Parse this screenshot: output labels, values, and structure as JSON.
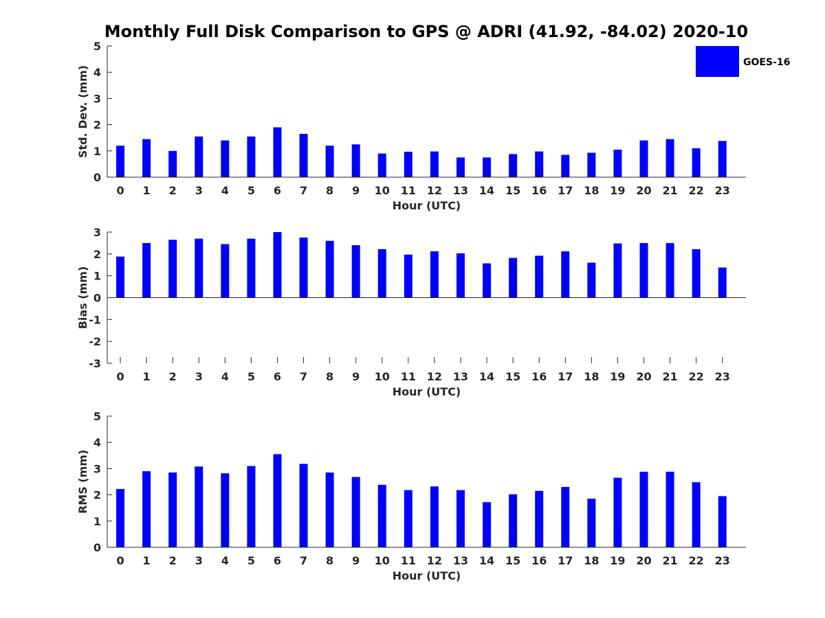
{
  "title": "Monthly Full Disk Comparison to GPS @ ADRI (41.92, -84.02) 2020-10",
  "legend": {
    "label": "GOES-16",
    "placement": "top-right"
  },
  "colors": {
    "bar": "#0000ff",
    "axis": "#262626",
    "background": "#ffffff"
  },
  "chart_data": [
    {
      "type": "bar",
      "name": "std",
      "categories": [
        "0",
        "1",
        "2",
        "3",
        "4",
        "5",
        "6",
        "7",
        "8",
        "9",
        "10",
        "11",
        "12",
        "13",
        "14",
        "15",
        "16",
        "17",
        "18",
        "19",
        "20",
        "21",
        "22",
        "23"
      ],
      "series": [
        {
          "name": "GOES-16",
          "values": [
            1.2,
            1.45,
            1.0,
            1.55,
            1.4,
            1.55,
            1.9,
            1.65,
            1.2,
            1.25,
            0.9,
            0.97,
            0.98,
            0.75,
            0.75,
            0.88,
            0.98,
            0.85,
            0.93,
            1.05,
            1.4,
            1.45,
            1.1,
            1.38
          ]
        }
      ],
      "xlabel": "Hour (UTC)",
      "ylabel": "Std. Dev. (mm)",
      "ylim": [
        0,
        5
      ],
      "yticks": [
        "0",
        "1",
        "2",
        "3",
        "4",
        "5"
      ],
      "grid": false
    },
    {
      "type": "bar",
      "name": "bias",
      "categories": [
        "0",
        "1",
        "2",
        "3",
        "4",
        "5",
        "6",
        "7",
        "8",
        "9",
        "10",
        "11",
        "12",
        "13",
        "14",
        "15",
        "16",
        "17",
        "18",
        "19",
        "20",
        "21",
        "22",
        "23"
      ],
      "series": [
        {
          "name": "GOES-16",
          "values": [
            1.88,
            2.5,
            2.65,
            2.7,
            2.45,
            2.7,
            3.0,
            2.75,
            2.6,
            2.4,
            2.22,
            1.97,
            2.12,
            2.03,
            1.57,
            1.82,
            1.92,
            2.12,
            1.6,
            2.48,
            2.5,
            2.5,
            2.22,
            1.38
          ]
        }
      ],
      "xlabel": "Hour (UTC)",
      "ylabel": "Bias (mm)",
      "ylim": [
        -3,
        3
      ],
      "yticks": [
        "-3",
        "-2",
        "-1",
        "0",
        "1",
        "2",
        "3"
      ],
      "grid": false
    },
    {
      "type": "bar",
      "name": "rms",
      "categories": [
        "0",
        "1",
        "2",
        "3",
        "4",
        "5",
        "6",
        "7",
        "8",
        "9",
        "10",
        "11",
        "12",
        "13",
        "14",
        "15",
        "16",
        "17",
        "18",
        "19",
        "20",
        "21",
        "22",
        "23"
      ],
      "series": [
        {
          "name": "GOES-16",
          "values": [
            2.22,
            2.9,
            2.85,
            3.08,
            2.82,
            3.1,
            3.55,
            3.18,
            2.85,
            2.68,
            2.38,
            2.18,
            2.32,
            2.18,
            1.72,
            2.02,
            2.15,
            2.3,
            1.85,
            2.65,
            2.88,
            2.88,
            2.48,
            1.95
          ]
        }
      ],
      "xlabel": "Hour (UTC)",
      "ylabel": "RMS (mm)",
      "ylim": [
        0,
        5
      ],
      "yticks": [
        "0",
        "1",
        "2",
        "3",
        "4",
        "5"
      ],
      "grid": false
    }
  ]
}
